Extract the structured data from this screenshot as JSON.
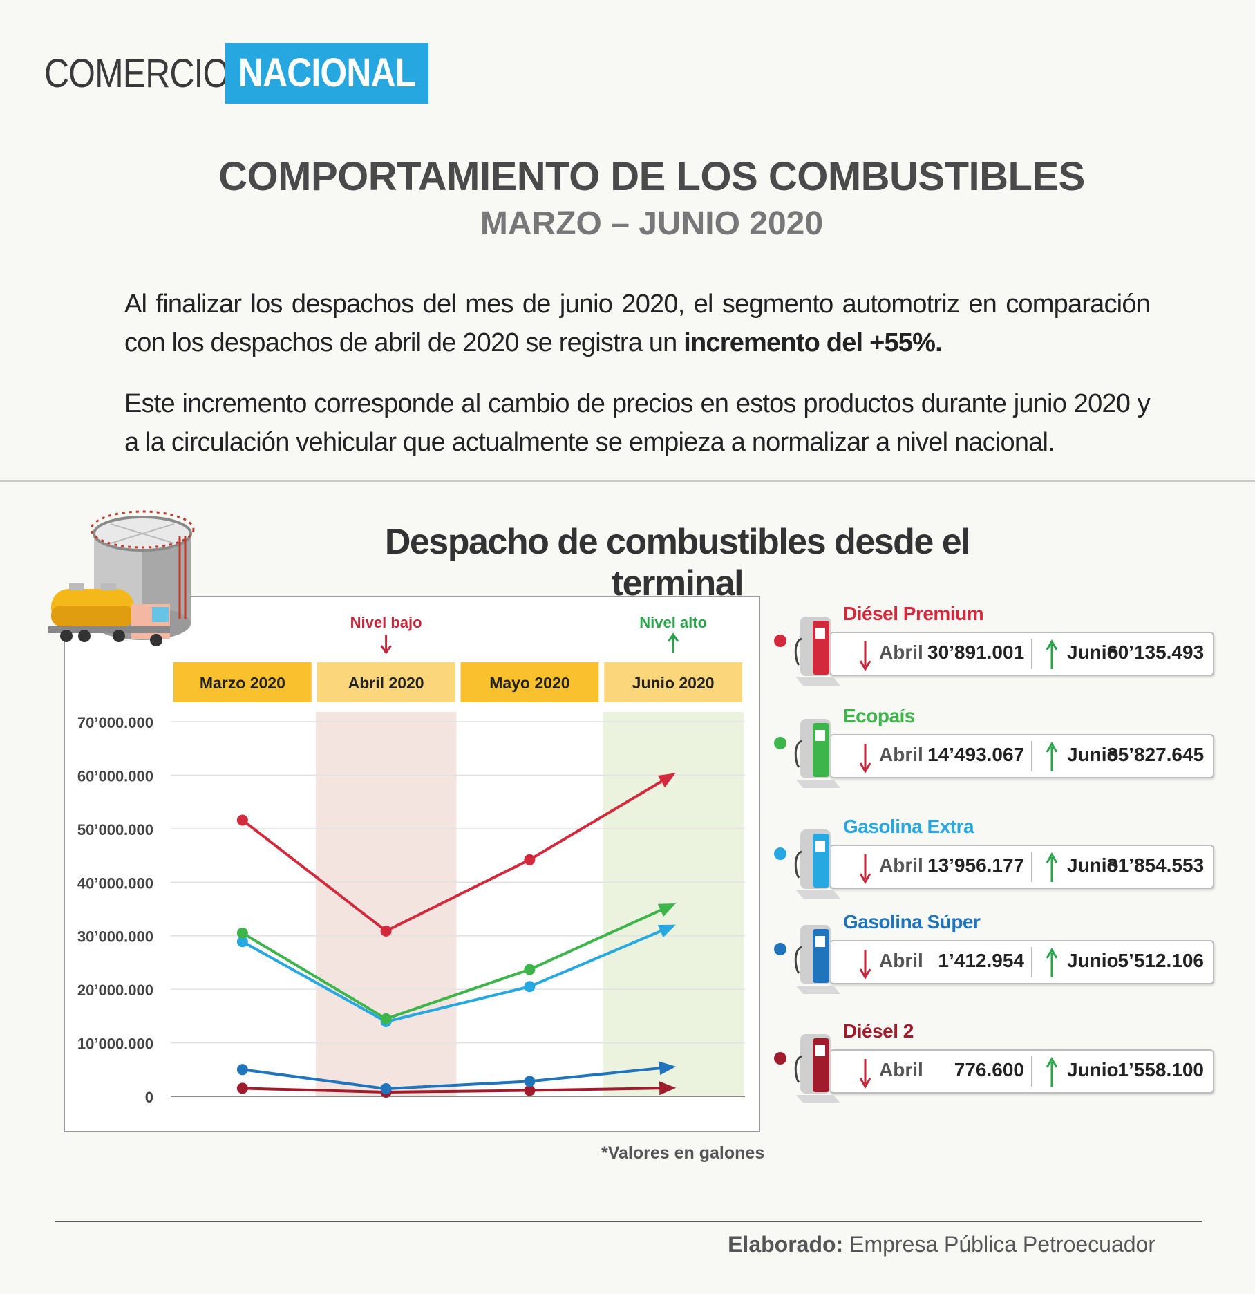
{
  "brand": {
    "left": "COMERCIO",
    "right": "NACIONAL"
  },
  "header": {
    "title": "COMPORTAMIENTO DE LOS COMBUSTIBLES",
    "subtitle": "MARZO – JUNIO 2020"
  },
  "paragraphs": {
    "p1_text": "Al finalizar los despachos del mes de junio 2020, el segmento automotriz en comparación con los despachos de abril de 2020 se registra un ",
    "p1_bold": "incremento del +55%.",
    "p2": "Este incremento corresponde al cambio de precios en estos productos durante junio 2020 y a la circulación vehicular que actualmente se empieza a normalizar a nivel nacional."
  },
  "chart_data": {
    "type": "line",
    "title": "Despacho de combustibles desde el terminal",
    "categories": [
      "Marzo 2020",
      "Abril 2020",
      "Mayo 2020",
      "Junio 2020"
    ],
    "ylim": [
      0,
      70000000
    ],
    "yticks": [
      "0",
      "10’000.000",
      "20’000.000",
      "30’000.000",
      "40’000.000",
      "50’000.000",
      "60’000.000",
      "70’000.000"
    ],
    "annotations": {
      "low": "Nivel bajo",
      "high": "Nivel alto"
    },
    "note": "*Valores en galones",
    "series": [
      {
        "name": "Diésel Premium",
        "color": "#d22a3c",
        "values": [
          51600000,
          30891001,
          44200000,
          60135493
        ]
      },
      {
        "name": "Ecopaís",
        "color": "#3db54a",
        "values": [
          30500000,
          14493067,
          23700000,
          35827645
        ]
      },
      {
        "name": "Gasolina Extra",
        "color": "#28a8e0",
        "values": [
          28900000,
          13956177,
          20500000,
          31854553
        ]
      },
      {
        "name": "Gasolina Súper",
        "color": "#1f74bb",
        "values": [
          5000000,
          1412954,
          2800000,
          5512106
        ]
      },
      {
        "name": "Diésel 2",
        "color": "#a01c2c",
        "values": [
          1500000,
          776600,
          1100000,
          1558100
        ]
      }
    ]
  },
  "cards": [
    {
      "name": "Diésel Premium",
      "color": "#d22a3c",
      "low_label": "Abril",
      "low_value": "30’891.001",
      "high_label": "Junio",
      "high_value": "60’135.493"
    },
    {
      "name": "Ecopaís",
      "color": "#3db54a",
      "low_label": "Abril",
      "low_value": "14’493.067",
      "high_label": "Junio",
      "high_value": "35’827.645"
    },
    {
      "name": "Gasolina Extra",
      "color": "#28a8e0",
      "low_label": "Abril",
      "low_value": "13’956.177",
      "high_label": "Junio",
      "high_value": "31’854.553"
    },
    {
      "name": "Gasolina Súper",
      "color": "#1f74bb",
      "low_label": "Abril",
      "low_value": "1’412.954",
      "high_label": "Junio",
      "high_value": "5’512.106"
    },
    {
      "name": "Diésel 2",
      "color": "#a01c2c",
      "low_label": "Abril",
      "low_value": "776.600",
      "high_label": "Junio",
      "high_value": "1’558.100"
    }
  ],
  "footer": {
    "label": "Elaborado:",
    "text": " Empresa Pública Petroecuador"
  }
}
